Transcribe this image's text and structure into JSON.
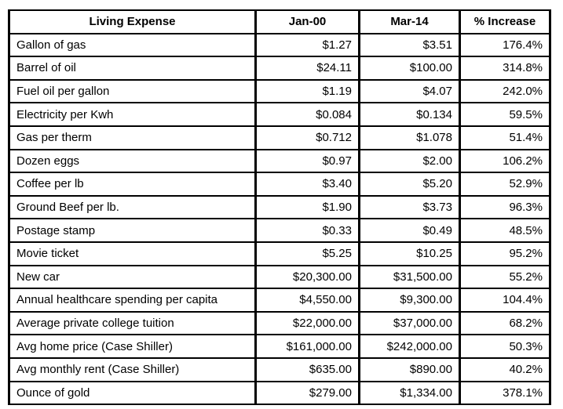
{
  "table": {
    "columns": [
      "Living Expense",
      "Jan-00",
      "Mar-14",
      "% Increase"
    ],
    "rows": [
      [
        "Gallon of gas",
        "$1.27",
        "$3.51",
        "176.4%"
      ],
      [
        "Barrel of oil",
        "$24.11",
        "$100.00",
        "314.8%"
      ],
      [
        "Fuel oil per gallon",
        "$1.19",
        "$4.07",
        "242.0%"
      ],
      [
        "Electricity per Kwh",
        "$0.084",
        "$0.134",
        "59.5%"
      ],
      [
        "Gas per therm",
        "$0.712",
        "$1.078",
        "51.4%"
      ],
      [
        "Dozen eggs",
        "$0.97",
        "$2.00",
        "106.2%"
      ],
      [
        "Coffee per lb",
        "$3.40",
        "$5.20",
        "52.9%"
      ],
      [
        "Ground Beef per lb.",
        "$1.90",
        "$3.73",
        "96.3%"
      ],
      [
        "Postage stamp",
        "$0.33",
        "$0.49",
        "48.5%"
      ],
      [
        "Movie ticket",
        "$5.25",
        "$10.25",
        "95.2%"
      ],
      [
        "New car",
        "$20,300.00",
        "$31,500.00",
        "55.2%"
      ],
      [
        "Annual healthcare spending per capita",
        "$4,550.00",
        "$9,300.00",
        "104.4%"
      ],
      [
        "Average private college tuition",
        "$22,000.00",
        "$37,000.00",
        "68.2%"
      ],
      [
        "Avg home price (Case Shiller)",
        "$161,000.00",
        "$242,000.00",
        "50.3%"
      ],
      [
        "Avg monthly rent (Case Shiller)",
        "$635.00",
        "$890.00",
        "40.2%"
      ],
      [
        "Ounce of gold",
        "$279.00",
        "$1,334.00",
        "378.1%"
      ]
    ],
    "border_color": "#000000",
    "text_color": "#000000",
    "background_color": "#ffffff"
  }
}
